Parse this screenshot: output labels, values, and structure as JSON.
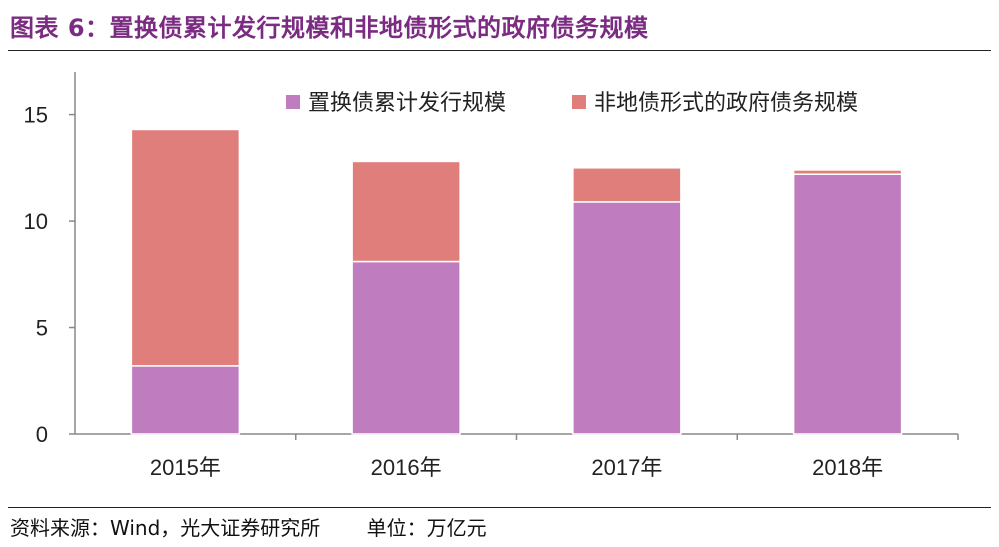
{
  "title": "图表 6：置换债累计发行规模和非地债形式的政府债务规模",
  "source": "资料来源：Wind，光大证券研究所",
  "unit": "单位：万亿元",
  "colors": {
    "title": "#7B2C82",
    "series1": "#BF7DBF",
    "series2": "#E07E7C",
    "axis": "#888888"
  },
  "chart_data": {
    "type": "bar",
    "stacked": true,
    "categories": [
      "2015年",
      "2016年",
      "2017年",
      "2018年"
    ],
    "series": [
      {
        "name": "置换债累计发行规模",
        "values": [
          3.2,
          8.1,
          10.9,
          12.2
        ],
        "color": "#BF7DBF"
      },
      {
        "name": "非地债形式的政府债务规模",
        "values": [
          11.1,
          4.7,
          1.6,
          0.2
        ],
        "color": "#E07E7C"
      }
    ],
    "yticks": [
      0,
      5,
      10,
      15
    ],
    "ylim": [
      0,
      17
    ],
    "grid": false,
    "legend": "top-right",
    "xlabel": "",
    "ylabel": ""
  }
}
